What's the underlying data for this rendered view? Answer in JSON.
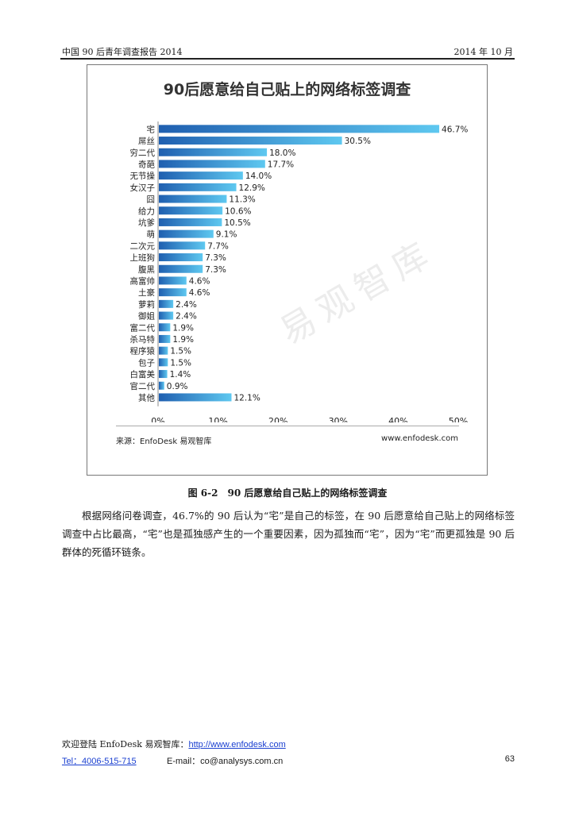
{
  "header": {
    "left": "中国 90 后青年调查报告 2014",
    "right": "2014 年 10 月"
  },
  "figure": {
    "source": "来源：EnfoDesk 易观智库",
    "site": "www.enfodesk.com",
    "watermark": "易观智库"
  },
  "chart_data": {
    "type": "bar",
    "orientation": "horizontal",
    "title": "90后愿意给自己贴上的网络标签调查",
    "categories": [
      "宅",
      "屌丝",
      "穷二代",
      "奇葩",
      "无节操",
      "女汉子",
      "囧",
      "给力",
      "坑爹",
      "萌",
      "二次元",
      "上班狗",
      "腹黑",
      "高富帅",
      "土豪",
      "萝莉",
      "御姐",
      "富二代",
      "杀马特",
      "程序猿",
      "包子",
      "白富美",
      "官二代",
      "其他"
    ],
    "values": [
      46.7,
      30.5,
      18.0,
      17.7,
      14.0,
      12.9,
      11.3,
      10.6,
      10.5,
      9.1,
      7.7,
      7.3,
      7.3,
      4.6,
      4.6,
      2.4,
      2.4,
      1.9,
      1.9,
      1.5,
      1.5,
      1.4,
      0.9,
      12.1
    ],
    "value_labels": [
      "46.7%",
      "30.5%",
      "18.0%",
      "17.7%",
      "14.0%",
      "12.9%",
      "11.3%",
      "10.6%",
      "10.5%",
      "9.1%",
      "7.7%",
      "7.3%",
      "7.3%",
      "4.6%",
      "4.6%",
      "2.4%",
      "2.4%",
      "1.9%",
      "1.9%",
      "1.5%",
      "1.5%",
      "1.4%",
      "0.9%",
      "12.1%"
    ],
    "xlim": [
      0,
      50
    ],
    "xticks": [
      "0%",
      "10%",
      "20%",
      "30%",
      "40%",
      "50%"
    ],
    "grid": false,
    "bar_color_start": "#1f5fb0",
    "bar_color_end": "#5ec8f0"
  },
  "caption": "图 6-2　90 后愿意给自己贴上的网络标签调查",
  "body_text": "根据网络问卷调查，46.7%的 90 后认为“宅”是自己的标签，在 90 后愿意给自己贴上的网络标签调查中占比最高，“宅”也是孤独感产生的一个重要因素，因为孤独而“宅”，因为“宅”而更孤独是 90 后群体的死循环链条。",
  "footer": {
    "welcome": "欢迎登陆 EnfoDesk 易观智库：",
    "url": "http://www.enfodesk.com",
    "tel": "Tel：4006-515-715",
    "email": "E-mail：co@analysys.com.cn",
    "page": "63"
  }
}
